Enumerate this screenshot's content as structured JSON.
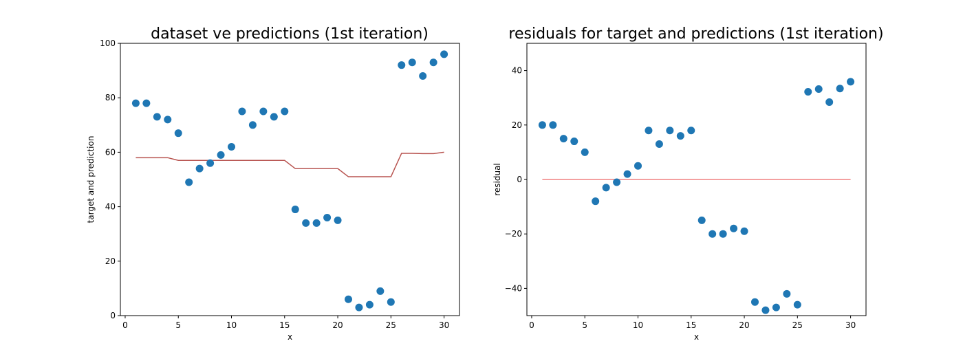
{
  "chart_data": [
    {
      "type": "scatter",
      "title": "dataset ve predictions (1st iteration)",
      "xlabel": "x",
      "ylabel": "target and prediction",
      "xlim": [
        -0.45,
        31.45
      ],
      "ylim": [
        0,
        100
      ],
      "xticks": [
        0,
        5,
        10,
        15,
        20,
        25,
        30
      ],
      "yticks": [
        0,
        20,
        40,
        60,
        80,
        100
      ],
      "grid": false,
      "series": [
        {
          "kind": "scatter",
          "color": "#1f77b4",
          "x": [
            1,
            2,
            3,
            4,
            5,
            6,
            7,
            8,
            9,
            10,
            11,
            12,
            13,
            14,
            15,
            16,
            17,
            18,
            19,
            20,
            21,
            22,
            23,
            24,
            25,
            26,
            27,
            28,
            29,
            30
          ],
          "y": [
            78,
            78,
            73,
            72,
            67,
            49,
            54,
            56,
            59,
            62,
            75,
            70,
            75,
            73,
            75,
            39,
            34,
            34,
            36,
            35,
            6,
            3,
            4,
            9,
            5,
            92,
            93,
            88,
            93,
            96
          ]
        },
        {
          "kind": "line",
          "color": "#b85450",
          "x": [
            1,
            2,
            3,
            4,
            5,
            6,
            7,
            8,
            9,
            10,
            11,
            12,
            13,
            14,
            15,
            16,
            17,
            18,
            19,
            20,
            21,
            22,
            23,
            24,
            25,
            26,
            27,
            28,
            29,
            30
          ],
          "y": [
            58,
            58,
            58,
            58,
            57,
            57,
            57,
            57,
            57,
            57,
            57,
            57,
            57,
            57,
            57,
            54,
            54,
            54,
            54,
            54,
            51,
            51,
            51,
            51,
            51,
            59.6,
            59.6,
            59.5,
            59.5,
            60
          ]
        }
      ]
    },
    {
      "type": "scatter",
      "title": "residuals for target and predictions (1st iteration)",
      "xlabel": "x",
      "ylabel": "residual",
      "xlim": [
        -0.45,
        31.45
      ],
      "ylim": [
        -50,
        50
      ],
      "xticks": [
        0,
        5,
        10,
        15,
        20,
        25,
        30
      ],
      "yticks": [
        -40,
        -20,
        0,
        20,
        40
      ],
      "ytick_labels": [
        "−40",
        "−20",
        "0",
        "20",
        "40"
      ],
      "grid": false,
      "series": [
        {
          "kind": "scatter",
          "color": "#1f77b4",
          "x": [
            1,
            2,
            3,
            4,
            5,
            6,
            7,
            8,
            9,
            10,
            11,
            12,
            13,
            14,
            15,
            16,
            17,
            18,
            19,
            20,
            21,
            22,
            23,
            24,
            25,
            26,
            27,
            28,
            29,
            30
          ],
          "y": [
            20,
            20,
            15,
            14,
            10,
            -8,
            -3,
            -1,
            2,
            5,
            18,
            13,
            18,
            16,
            18,
            -15,
            -20,
            -20,
            -18,
            -19,
            -45,
            -48,
            -47,
            -42,
            -46,
            32.2,
            33.2,
            28.4,
            33.4,
            35.9
          ]
        },
        {
          "kind": "line",
          "color": "#f08080",
          "x": [
            1,
            30
          ],
          "y": [
            0,
            0
          ]
        }
      ]
    }
  ]
}
